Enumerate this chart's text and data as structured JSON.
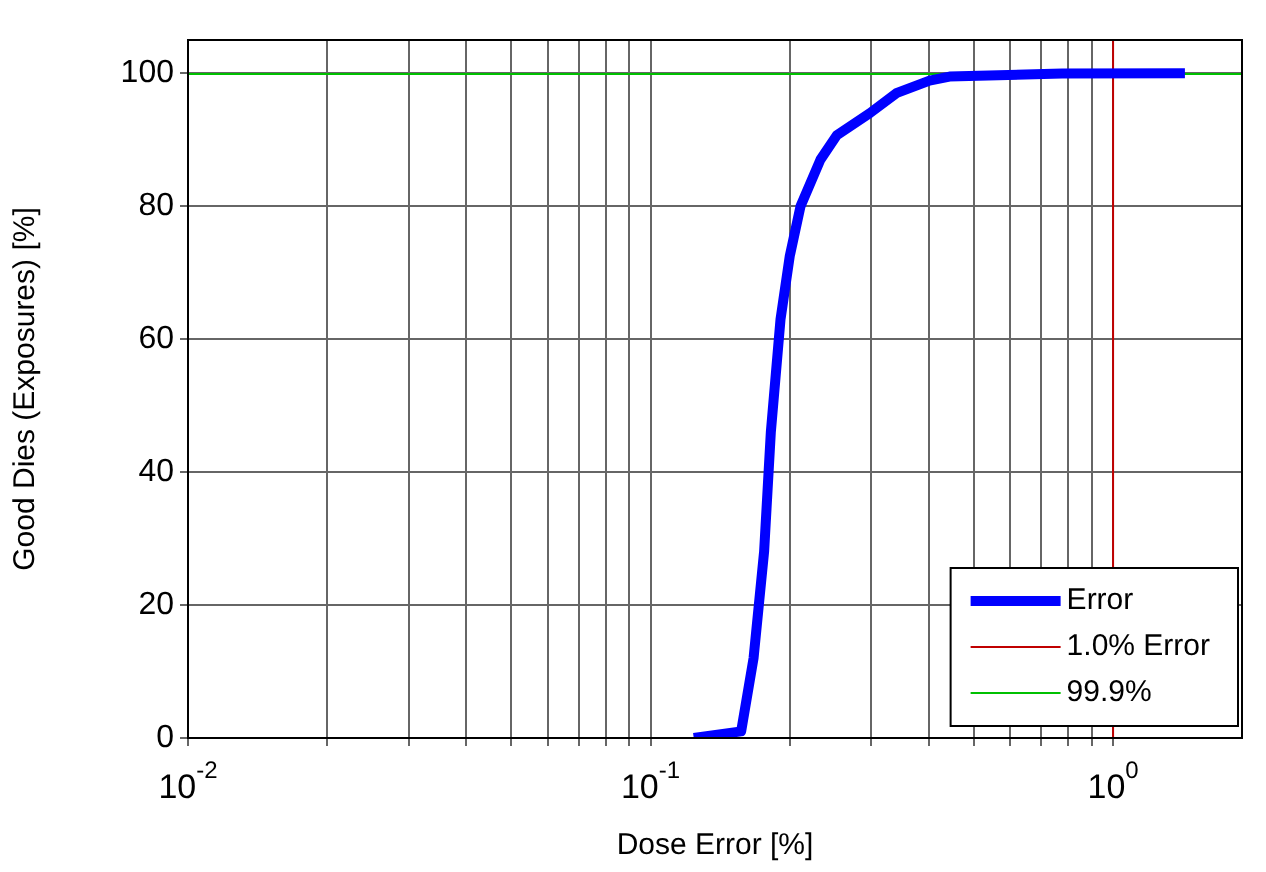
{
  "chart_data": {
    "type": "line",
    "xlabel": "Dose Error [%]",
    "ylabel": "Good Dies (Exposures) [%]",
    "series": [
      {
        "name": "Error",
        "color": "#0000ff",
        "x": [
          0.124,
          0.157,
          0.167,
          0.176,
          0.182,
          0.191,
          0.2,
          0.211,
          0.233,
          0.253,
          0.298,
          0.34,
          0.401,
          0.443,
          0.776,
          1.43
        ],
        "values": [
          0,
          1,
          12,
          28,
          46,
          63,
          72.5,
          80,
          87,
          90.7,
          94,
          97,
          98.9,
          99.5,
          99.95,
          100
        ]
      }
    ],
    "log": "x",
    "xlim": [
      0.01,
      1.9
    ],
    "ylim": [
      0,
      105
    ],
    "xticks": [
      {
        "value": 0.01,
        "label": "10$^{-2}$"
      },
      {
        "value": 0.02,
        "label": null
      },
      {
        "value": 0.03,
        "label": null
      },
      {
        "value": 0.04,
        "label": null
      },
      {
        "value": 0.05,
        "label": null
      },
      {
        "value": 0.06,
        "label": null
      },
      {
        "value": 0.07,
        "label": null
      },
      {
        "value": 0.08,
        "label": null
      },
      {
        "value": 0.09,
        "label": null
      },
      {
        "value": 0.1,
        "label": "10$^{-1}$"
      },
      {
        "value": 0.2,
        "label": null
      },
      {
        "value": 0.3,
        "label": null
      },
      {
        "value": 0.4,
        "label": null
      },
      {
        "value": 0.5,
        "label": null
      },
      {
        "value": 0.6,
        "label": null
      },
      {
        "value": 0.7,
        "label": null
      },
      {
        "value": 0.8,
        "label": null
      },
      {
        "value": 0.9,
        "label": null
      },
      {
        "value": 1,
        "label": "10$^{0}$"
      }
    ],
    "yticks": [
      0,
      20,
      40,
      60,
      80,
      100
    ],
    "ref_lines": [
      {
        "axis": "x",
        "value": 1,
        "label": "1.0% Error",
        "color": "#c00000"
      },
      {
        "axis": "y",
        "value": 99.9,
        "label": "99.9%",
        "color": "#00c000"
      }
    ],
    "grid": true,
    "legend": "bottom right",
    "marker": "none",
    "line_style": "solid"
  }
}
